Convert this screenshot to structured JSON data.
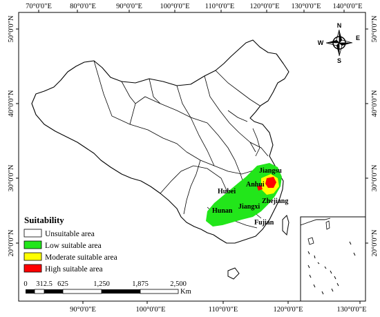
{
  "axes": {
    "top_ticks": [
      "70°0'0\"E",
      "80°0'0\"E",
      "90°0'0\"E",
      "100°0'0\"E",
      "110°0'0\"E",
      "120°0'0\"E",
      "130°0'0\"E",
      "140°0'0\"E"
    ],
    "bottom_ticks": [
      "90°0'0\"E",
      "100°0'0\"E",
      "110°0'0\"E",
      "120°0'0\"E",
      "130°0'0\"E"
    ],
    "left_ticks": [
      "50°0'0\"N",
      "40°0'0\"N",
      "30°0'0\"N",
      "20°0'0\"N"
    ],
    "right_ticks": [
      "50°0'0\"N",
      "40°0'0\"N",
      "30°0'0\"N",
      "20°0'0\"N"
    ]
  },
  "compass": {
    "n": "N",
    "s": "S",
    "e": "E",
    "w": "W"
  },
  "provinces": {
    "jiangsu": "Jiangsu",
    "anhui": "Anhui",
    "hubei": "Hubei",
    "hunan": "Hunan",
    "jiangxi": "Jiangxi",
    "zhejiang": "Zhejiang",
    "fujian": "Fujian"
  },
  "legend": {
    "title": "Suitability",
    "items": [
      {
        "label": "Unsuitable area",
        "color": "#ffffff"
      },
      {
        "label": "Low suitable area",
        "color": "#22e61a"
      },
      {
        "label": "Moderate suitable area",
        "color": "#ffff00"
      },
      {
        "label": "High suitable area",
        "color": "#ff0000"
      }
    ]
  },
  "scale_bar": {
    "labels": [
      "0",
      "312.5",
      "625",
      "1,250",
      "1,875",
      "2,500"
    ],
    "unit": "Km"
  }
}
